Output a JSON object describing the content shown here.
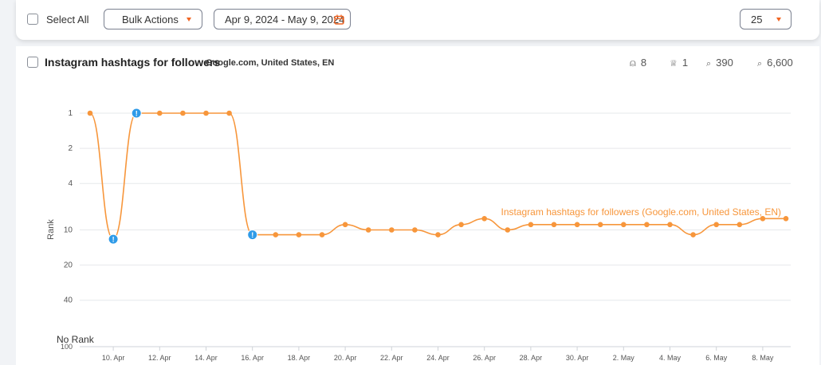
{
  "toolbar": {
    "select_all_label": "Select All",
    "bulk_actions_label": "Bulk Actions",
    "date_range": "Apr 9, 2024 - May 9, 2024",
    "per_page": "25"
  },
  "panel": {
    "keyword": "Instagram hashtags for followers",
    "engine": "Google.com, United States, EN",
    "stats": [
      {
        "icon": "users-icon",
        "glyph": "⍝",
        "value": "8"
      },
      {
        "icon": "trophy-icon",
        "glyph": "🏆",
        "value": "1"
      },
      {
        "icon": "search-icon",
        "glyph": "🔍",
        "value": "390"
      },
      {
        "icon": "volume-icon",
        "glyph": "🔎",
        "value": "6,600"
      }
    ]
  },
  "colors": {
    "series": "#f7963b",
    "alert": "#2f9be8"
  },
  "chart_data": {
    "type": "line",
    "title": "",
    "xlabel": "",
    "ylabel": "Rank",
    "y_scale": "log",
    "yticks": [
      {
        "value": 1,
        "label": "1"
      },
      {
        "value": 2,
        "label": "2"
      },
      {
        "value": 4,
        "label": "4"
      },
      {
        "value": 10,
        "label": "10"
      },
      {
        "value": 20,
        "label": "20"
      },
      {
        "value": 40,
        "label": "40"
      },
      {
        "value": 100,
        "label": "100"
      }
    ],
    "no_rank_label": "No Rank",
    "xticks": [
      "10. Apr",
      "12. Apr",
      "14. Apr",
      "16. Apr",
      "18. Apr",
      "20. Apr",
      "22. Apr",
      "24. Apr",
      "26. Apr",
      "28. Apr",
      "30. Apr",
      "2. May",
      "4. May",
      "6. May",
      "8. May"
    ],
    "x": [
      "9. Apr",
      "10. Apr",
      "11. Apr",
      "12. Apr",
      "13. Apr",
      "14. Apr",
      "15. Apr",
      "16. Apr",
      "17. Apr",
      "18. Apr",
      "19. Apr",
      "20. Apr",
      "21. Apr",
      "22. Apr",
      "23. Apr",
      "24. Apr",
      "25. Apr",
      "26. Apr",
      "27. Apr",
      "28. Apr",
      "29. Apr",
      "30. Apr",
      "1. May",
      "2. May",
      "3. May",
      "4. May",
      "5. May",
      "6. May",
      "7. May",
      "8. May",
      "9. May"
    ],
    "series": [
      {
        "name": "Instagram hashtags for followers (Google.com, United States, EN)",
        "values": [
          1,
          12,
          1,
          1,
          1,
          1,
          1,
          11,
          11,
          11,
          11,
          9,
          10,
          10,
          10,
          11,
          9,
          8,
          10,
          9,
          9,
          9,
          9,
          9,
          9,
          9,
          11,
          9,
          9,
          8,
          8
        ],
        "alerts": [
          "10. Apr",
          "11. Apr",
          "16. Apr"
        ]
      }
    ]
  }
}
